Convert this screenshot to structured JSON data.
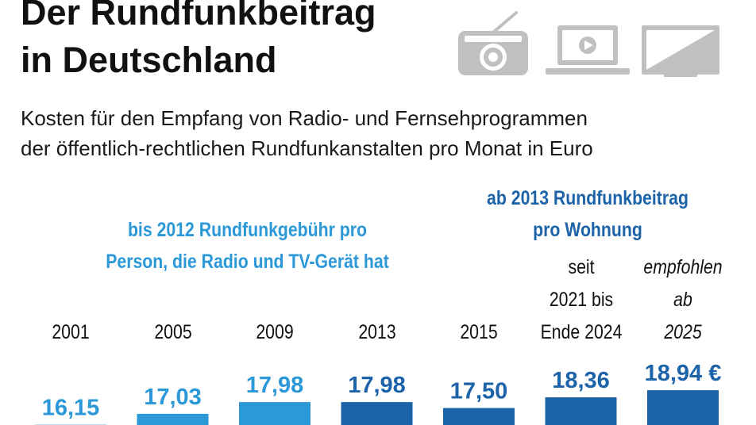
{
  "title_lines": [
    "Der Rundfunkbeitrag",
    "in Deutschland"
  ],
  "subtitle_lines": [
    "Kosten für den Empfang von Radio- und Fernsehprogrammen",
    "der öffentlich-rechtlichen Rundfunkanstalten pro Monat in Euro"
  ],
  "notes": {
    "before": [
      "bis 2012 Rundfunkgebühr pro",
      "Person, die Radio und TV-Gerät hat"
    ],
    "after": [
      "ab 2013 Rundfunkbeitrag",
      "pro Wohnung"
    ]
  },
  "icons": [
    "radio-icon",
    "laptop-icon",
    "tv-icon"
  ],
  "colors": {
    "light_blue": "#2b98d8",
    "dark_blue": "#1c63a9",
    "icon_gray": "#c0c0c0",
    "title": "#111111"
  },
  "chart_data": {
    "type": "bar",
    "title": "Der Rundfunkbeitrag in Deutschland",
    "subtitle": "Kosten für den Empfang von Radio- und Fernsehprogrammen der öffentlich-rechtlichen Rundfunkanstalten pro Monat in Euro",
    "xlabel": "",
    "ylabel": "",
    "categories": [
      [
        "2001"
      ],
      [
        "2005"
      ],
      [
        "2009"
      ],
      [
        "2013"
      ],
      [
        "2015"
      ],
      [
        "seit",
        "2021 bis",
        "Ende 2024"
      ],
      [
        "empfohlen",
        "ab",
        "2025"
      ]
    ],
    "values": [
      16.15,
      17.03,
      17.98,
      17.98,
      17.5,
      18.36,
      18.94
    ],
    "labels": [
      "16,15",
      "17,03",
      "17,98",
      "17,98",
      "17,50",
      "18,36",
      "18,94 €"
    ],
    "bar_colors": [
      "light_blue",
      "light_blue",
      "light_blue",
      "dark_blue",
      "dark_blue",
      "dark_blue",
      "dark_blue"
    ],
    "italic_categories": [
      false,
      false,
      false,
      false,
      false,
      false,
      true
    ],
    "ylim": [
      16.0,
      19.2
    ],
    "grid": false,
    "legend": "none"
  }
}
